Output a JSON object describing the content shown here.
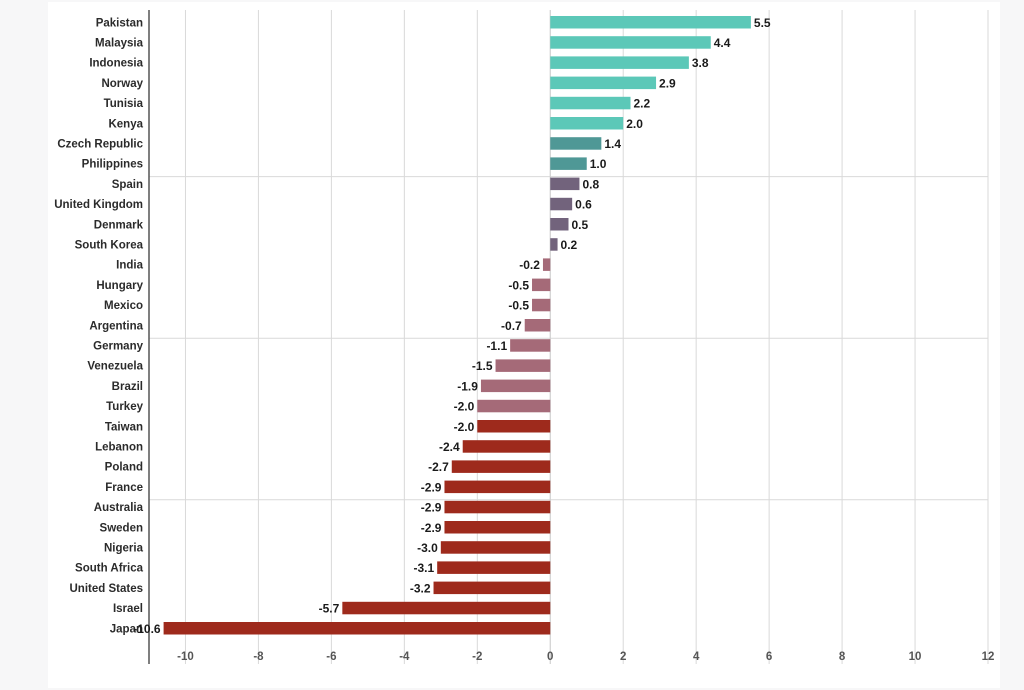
{
  "colors": {
    "teal": "#5cc8b8",
    "dark_teal": "#4f9896",
    "purple": "#72637c",
    "mauve": "#a56a78",
    "dark_red": "#9e2a1c",
    "grid": "#d9d9d9",
    "axis": "#555555"
  },
  "chart_data": {
    "type": "bar",
    "orientation": "horizontal",
    "title": "",
    "xlabel": "",
    "ylabel": "",
    "xlim": [
      -11,
      12
    ],
    "xticks": [
      -10,
      -8,
      -6,
      -4,
      -2,
      0,
      2,
      4,
      6,
      8,
      10,
      12
    ],
    "xtick_labels": [
      "-10",
      "-8",
      "-6",
      "-4",
      "-2",
      "0",
      "2",
      "4",
      "6",
      "8",
      "10",
      "12"
    ],
    "grid": "vertical and horizontal",
    "categories": [
      "Pakistan",
      "Malaysia",
      "Indonesia",
      "Norway",
      "Tunisia",
      "Kenya",
      "Czech Republic",
      "Philippines",
      "Spain",
      "United Kingdom",
      "Denmark",
      "South Korea",
      "India",
      "Hungary",
      "Mexico",
      "Argentina",
      "Germany",
      "Venezuela",
      "Brazil",
      "Turkey",
      "Taiwan",
      "Lebanon",
      "Poland",
      "France",
      "Australia",
      "Sweden",
      "Nigeria",
      "South Africa",
      "United States",
      "Israel",
      "Japan"
    ],
    "values": [
      5.5,
      4.4,
      3.8,
      2.9,
      2.2,
      2.0,
      1.4,
      1.0,
      0.8,
      0.6,
      0.5,
      0.2,
      -0.2,
      -0.5,
      -0.5,
      -0.7,
      -1.1,
      -1.5,
      -1.9,
      -2.0,
      -2.0,
      -2.4,
      -2.7,
      -2.9,
      -2.9,
      -2.9,
      -3.0,
      -3.1,
      -3.2,
      -5.7,
      -10.6
    ],
    "value_labels": [
      "5.5",
      "4.4",
      "3.8",
      "2.9",
      "2.2",
      "2.0",
      "1.4",
      "1.0",
      "0.8",
      "0.6",
      "0.5",
      "0.2",
      "-0.2",
      "-0.5",
      "-0.5",
      "-0.7",
      "-1.1",
      "-1.5",
      "-1.9",
      "-2.0",
      "-2.0",
      "-2.4",
      "-2.7",
      "-2.9",
      "-2.9",
      "-2.9",
      "-3.0",
      "-3.1",
      "-3.2",
      "-5.7",
      "-10.6"
    ],
    "bar_colors": [
      "teal",
      "teal",
      "teal",
      "teal",
      "teal",
      "teal",
      "dark_teal",
      "dark_teal",
      "purple",
      "purple",
      "purple",
      "purple",
      "mauve",
      "mauve",
      "mauve",
      "mauve",
      "mauve",
      "mauve",
      "mauve",
      "mauve",
      "dark_red",
      "dark_red",
      "dark_red",
      "dark_red",
      "dark_red",
      "dark_red",
      "dark_red",
      "dark_red",
      "dark_red",
      "dark_red",
      "dark_red"
    ]
  }
}
